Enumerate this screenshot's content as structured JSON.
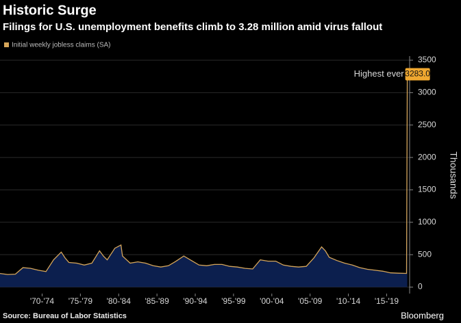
{
  "chart_data": {
    "type": "area",
    "title": "Historic Surge",
    "subtitle": "Filings for U.S. unemployment benefits climb to 3.28 million amid virus fallout",
    "legend": "Initial weekly jobless claims (SA)",
    "y_axis_label": "Thousands",
    "annotation": "Highest ever",
    "source": "Source: Bureau of Labor Statistics",
    "brand": "Bloomberg",
    "color": "#d6a65a",
    "fill": "#0c1f4e",
    "x": [
      1967,
      1968,
      1969,
      1970,
      1971,
      1972,
      1973,
      1974,
      1975,
      1975.5,
      1976,
      1977,
      1978,
      1979,
      1980,
      1980.5,
      1981,
      1982,
      1982.8,
      1983,
      1984,
      1985,
      1986,
      1987,
      1988,
      1989,
      1990,
      1991,
      1992,
      1993,
      1994,
      1995,
      1996,
      1997,
      1998,
      1999,
      2000,
      2001,
      2002,
      2003,
      2004,
      2005,
      2006,
      2007,
      2008,
      2009,
      2009.5,
      2010,
      2011,
      2012,
      2013,
      2014,
      2015,
      2016,
      2017,
      2018,
      2019,
      2020.1,
      2020.2
    ],
    "values": [
      210,
      195,
      200,
      300,
      290,
      260,
      240,
      420,
      540,
      450,
      380,
      370,
      340,
      370,
      560,
      480,
      420,
      600,
      650,
      480,
      370,
      390,
      370,
      330,
      310,
      330,
      400,
      480,
      410,
      340,
      330,
      350,
      350,
      320,
      310,
      290,
      280,
      420,
      400,
      400,
      340,
      320,
      310,
      320,
      450,
      620,
      560,
      460,
      410,
      370,
      340,
      300,
      275,
      260,
      245,
      220,
      215,
      211,
      3283
    ],
    "value_labels": {
      "58": "3283.0"
    },
    "xlim": [
      1967,
      2020.5
    ],
    "xticks": [
      {
        "value": 1972.5,
        "label": "'70-'74"
      },
      {
        "value": 1977.5,
        "label": "'75-'79"
      },
      {
        "value": 1982.5,
        "label": "'80-'84"
      },
      {
        "value": 1987.5,
        "label": "'85-'89"
      },
      {
        "value": 1992.5,
        "label": "'90-'94"
      },
      {
        "value": 1997.5,
        "label": "'95-'99"
      },
      {
        "value": 2002.5,
        "label": "'00-'04"
      },
      {
        "value": 2007.5,
        "label": "'05-'09"
      },
      {
        "value": 2012.5,
        "label": "'10-'14"
      },
      {
        "value": 2017.5,
        "label": "'15-'19"
      }
    ],
    "ylim": [
      -100,
      3500
    ],
    "yticks": [
      0,
      500,
      1000,
      1500,
      2000,
      2500,
      3000,
      3500
    ],
    "grid": true
  }
}
